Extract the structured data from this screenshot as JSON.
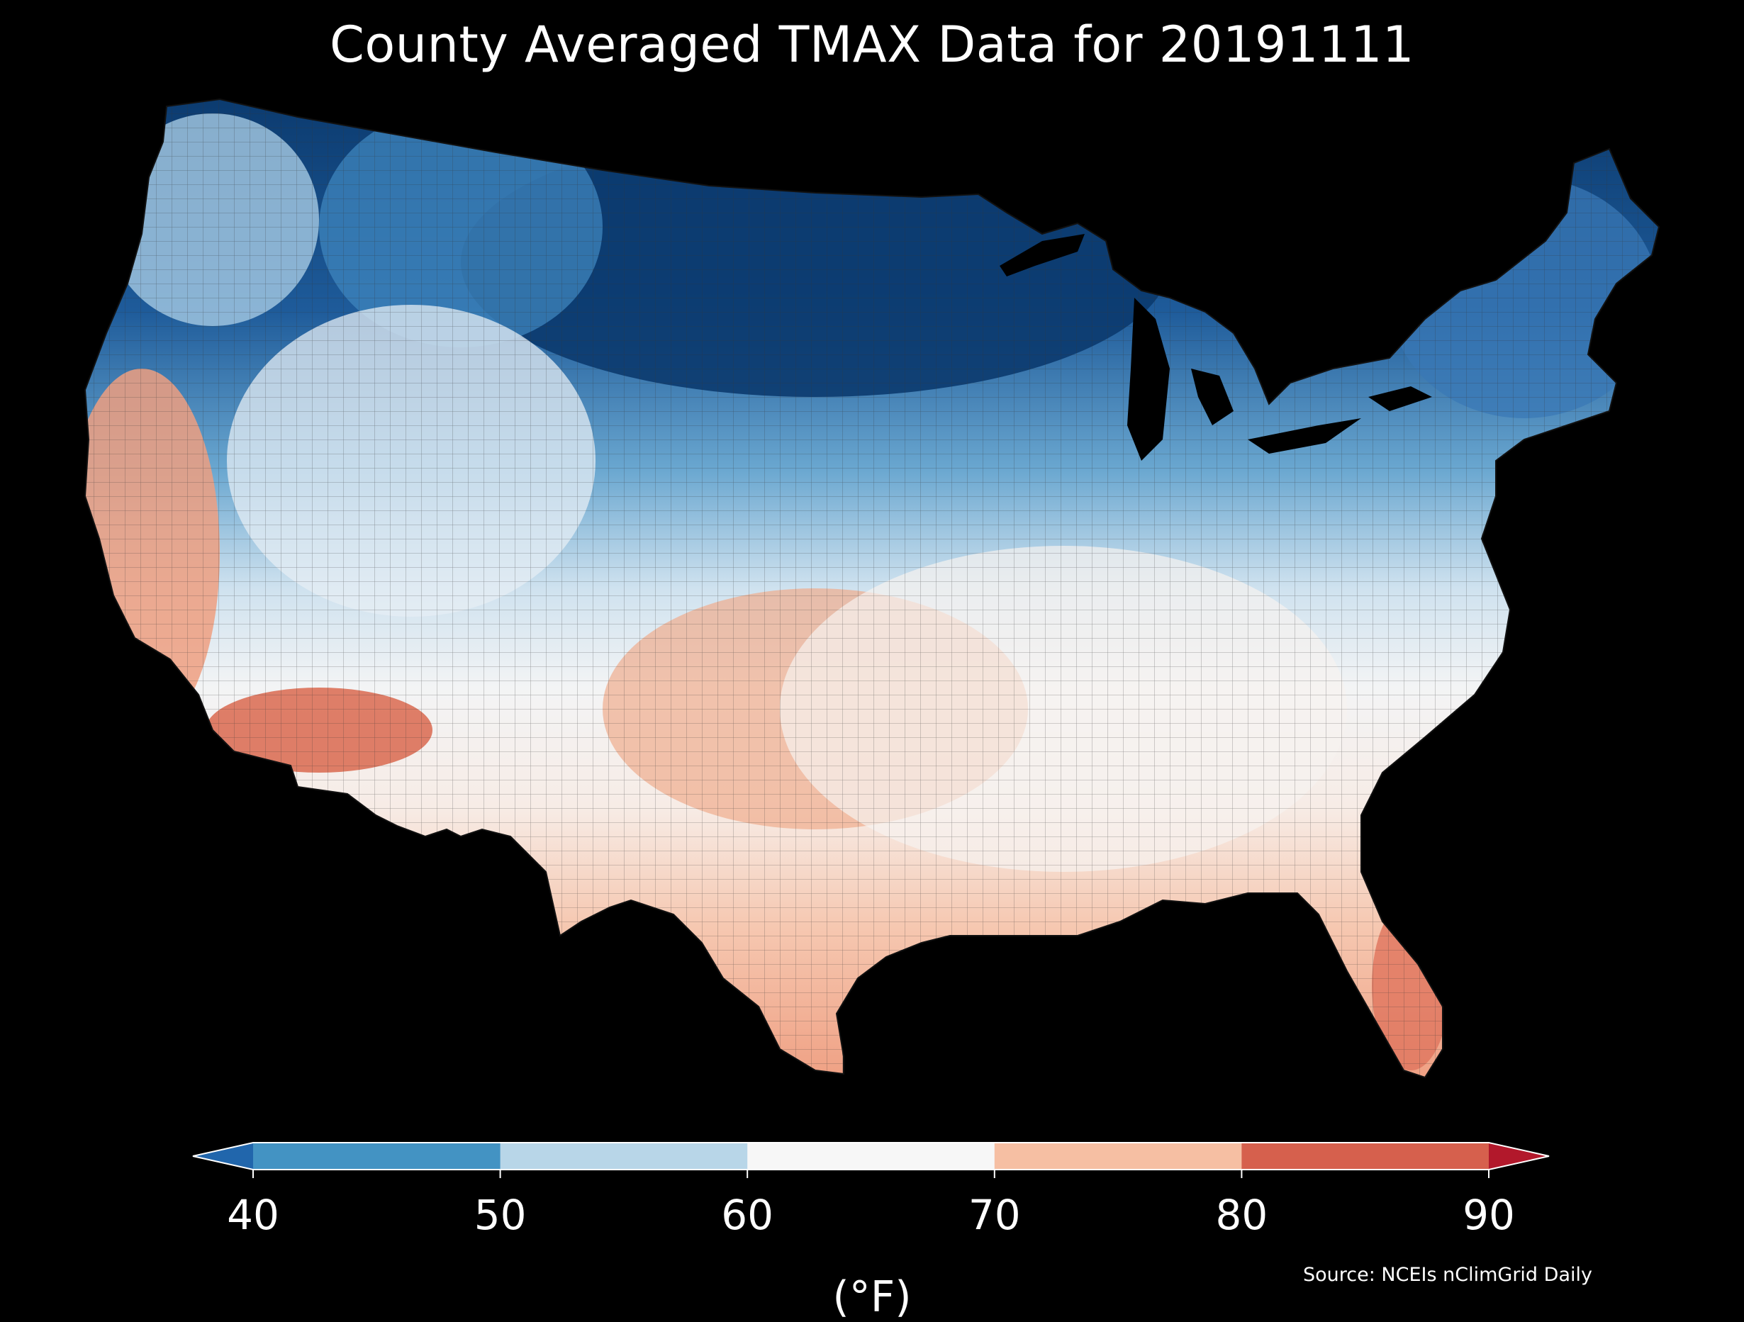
{
  "title": "County Averaged TMAX Data for 20191111",
  "colorbar": {
    "unit": "(°F)",
    "ticks": [
      "40",
      "50",
      "60",
      "70",
      "80",
      "90"
    ],
    "bins": [
      {
        "range": "<40",
        "color": "#2166ac"
      },
      {
        "range": "40-50",
        "color": "#4393c3"
      },
      {
        "range": "50-60",
        "color": "#b8d6e8"
      },
      {
        "range": "60-70",
        "color": "#f7f7f7"
      },
      {
        "range": "70-80",
        "color": "#f6bfa3"
      },
      {
        "range": "80-90",
        "color": "#d6604d"
      },
      {
        "range": ">90",
        "color": "#b2182b"
      }
    ]
  },
  "source": "Source: NCEIs nClimGrid Daily",
  "map_regions": [
    {
      "name": "northern-plains-upper-midwest",
      "color": "#0b3a6e"
    },
    {
      "name": "northern-rockies",
      "color": "#3f86bd"
    },
    {
      "name": "northeast",
      "color": "#3a78b6"
    },
    {
      "name": "pacific-northwest",
      "color": "#a6cbe3"
    },
    {
      "name": "great-basin-central-rockies",
      "color": "#dde9f2"
    },
    {
      "name": "mid-atlantic-ohio-valley",
      "color": "#e9eef2"
    },
    {
      "name": "southeast",
      "color": "#f7f2ef"
    },
    {
      "name": "southern-plains",
      "color": "#f0ad8d"
    },
    {
      "name": "texas-gulf",
      "color": "#f4b89c"
    },
    {
      "name": "california",
      "color": "#ee9f80"
    },
    {
      "name": "desert-southwest",
      "color": "#d9694f"
    },
    {
      "name": "south-florida",
      "color": "#e07860"
    }
  ]
}
